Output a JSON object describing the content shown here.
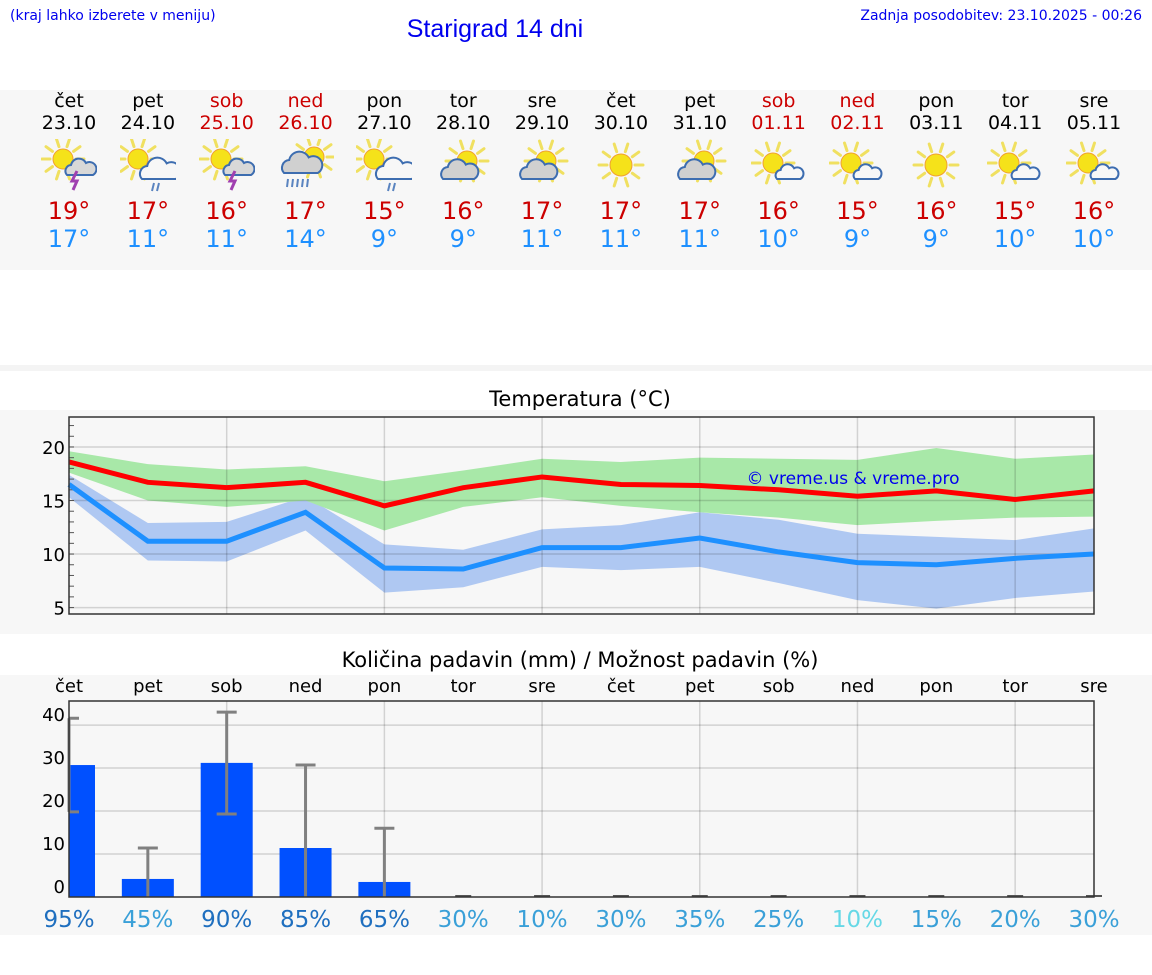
{
  "header": {
    "hint": "(kraj lahko izberete v meniju)",
    "title": "Starigrad 14 dni",
    "updated": "Zadnja posodobitev: 23.10.2025 - 00:26"
  },
  "colors": {
    "weekday": "#000000",
    "weekend": "#cc0000",
    "max": "#cc0000",
    "min": "#1e90ff",
    "bar": "#0050ff"
  },
  "days": [
    {
      "name": "čet",
      "date": "23.10",
      "weekend": false,
      "icon": "sun-cloud-thunder",
      "max": "19°",
      "min": "17°"
    },
    {
      "name": "pet",
      "date": "24.10",
      "weekend": false,
      "icon": "sun-cloud-rain",
      "max": "17°",
      "min": "11°"
    },
    {
      "name": "sob",
      "date": "25.10",
      "weekend": true,
      "icon": "sun-cloud-thunder",
      "max": "16°",
      "min": "11°"
    },
    {
      "name": "ned",
      "date": "26.10",
      "weekend": true,
      "icon": "sun-grey-cloud-heavy-rain",
      "max": "17°",
      "min": "14°"
    },
    {
      "name": "pon",
      "date": "27.10",
      "weekend": false,
      "icon": "sun-cloud-rain",
      "max": "15°",
      "min": "9°"
    },
    {
      "name": "tor",
      "date": "28.10",
      "weekend": false,
      "icon": "sun-grey-cloud",
      "max": "16°",
      "min": "9°"
    },
    {
      "name": "sre",
      "date": "29.10",
      "weekend": false,
      "icon": "sun-grey-cloud",
      "max": "17°",
      "min": "11°"
    },
    {
      "name": "čet",
      "date": "30.10",
      "weekend": false,
      "icon": "sun",
      "max": "17°",
      "min": "11°"
    },
    {
      "name": "pet",
      "date": "31.10",
      "weekend": false,
      "icon": "sun-grey-cloud",
      "max": "17°",
      "min": "11°"
    },
    {
      "name": "sob",
      "date": "01.11",
      "weekend": true,
      "icon": "sun-small-cloud",
      "max": "16°",
      "min": "10°"
    },
    {
      "name": "ned",
      "date": "02.11",
      "weekend": true,
      "icon": "sun-small-cloud",
      "max": "15°",
      "min": "9°"
    },
    {
      "name": "pon",
      "date": "03.11",
      "weekend": false,
      "icon": "sun",
      "max": "16°",
      "min": "9°"
    },
    {
      "name": "tor",
      "date": "04.11",
      "weekend": false,
      "icon": "sun-small-cloud",
      "max": "15°",
      "min": "10°"
    },
    {
      "name": "sre",
      "date": "05.11",
      "weekend": false,
      "icon": "sun-small-cloud",
      "max": "16°",
      "min": "10°"
    }
  ],
  "chart_data": [
    {
      "type": "line",
      "title": "Temperatura (°C)",
      "watermark": "© vreme.us & vreme.pro",
      "ylim": [
        4.4,
        22.8
      ],
      "yticks": [
        5,
        10,
        15,
        20
      ],
      "grid": true,
      "series": [
        {
          "name": "max",
          "color": "#ff0000",
          "band_color": "#a8e8a8",
          "values": [
            18.6,
            16.7,
            16.2,
            16.7,
            14.5,
            16.2,
            17.2,
            16.5,
            16.4,
            16.0,
            15.4,
            15.9,
            15.1,
            15.9
          ],
          "upper": [
            19.6,
            18.4,
            17.9,
            18.2,
            16.8,
            17.8,
            18.9,
            18.6,
            19.0,
            18.9,
            18.8,
            19.9,
            18.9,
            19.3
          ],
          "lower": [
            17.6,
            15.0,
            14.4,
            15.0,
            12.2,
            14.4,
            15.3,
            14.5,
            13.9,
            13.4,
            12.7,
            13.1,
            13.4,
            13.5
          ]
        },
        {
          "name": "min",
          "color": "#1e90ff",
          "band_color": "#7fa8ee",
          "values": [
            16.5,
            11.2,
            11.2,
            13.9,
            8.7,
            8.6,
            10.6,
            10.6,
            11.5,
            10.2,
            9.2,
            9.0,
            9.6,
            10.0
          ],
          "upper": [
            17.4,
            12.9,
            13.0,
            15.4,
            10.9,
            10.4,
            12.3,
            12.7,
            13.9,
            13.2,
            11.9,
            11.6,
            11.3,
            12.4
          ],
          "lower": [
            15.3,
            9.4,
            9.3,
            12.2,
            6.4,
            6.9,
            8.8,
            8.5,
            8.8,
            7.3,
            5.7,
            4.9,
            5.9,
            6.5
          ]
        }
      ]
    },
    {
      "type": "bar",
      "title": "Količina padavin (mm) / Možnost padavin (%)",
      "categories": [
        "čet",
        "pet",
        "sob",
        "ned",
        "pon",
        "tor",
        "sre",
        "čet",
        "pet",
        "sob",
        "ned",
        "pon",
        "tor",
        "sre"
      ],
      "values": [
        30.7,
        4.2,
        31.2,
        11.4,
        3.5,
        0,
        0,
        0,
        0,
        0,
        0,
        0,
        0,
        0
      ],
      "err_low": [
        19.8,
        0,
        19.3,
        0,
        0,
        0,
        0,
        0,
        0,
        0,
        0,
        0,
        0,
        0
      ],
      "err_high": [
        41.6,
        11.4,
        43.0,
        30.7,
        16.0,
        0,
        0,
        0,
        0,
        0,
        0,
        0,
        0,
        0
      ],
      "ylim": [
        0,
        45.6
      ],
      "yticks": [
        0,
        10,
        20,
        30,
        40
      ],
      "probability": [
        "95%",
        "45%",
        "90%",
        "85%",
        "65%",
        "30%",
        "10%",
        "30%",
        "35%",
        "25%",
        "10%",
        "15%",
        "20%",
        "30%"
      ],
      "probability_colors": [
        "#1f6fbf",
        "#3aa0d8",
        "#1f6fbf",
        "#1f6fbf",
        "#1f6fbf",
        "#3aa0d8",
        "#3aa0d8",
        "#3aa0d8",
        "#3aa0d8",
        "#3aa0d8",
        "#66d8e6",
        "#3aa0d8",
        "#3aa0d8",
        "#3aa0d8"
      ]
    }
  ]
}
